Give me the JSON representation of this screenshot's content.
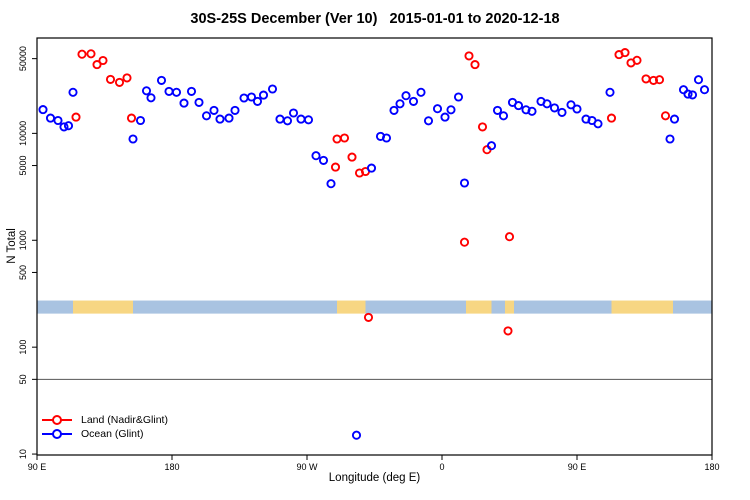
{
  "title": "30S-25S December (Ver 10)   2015-01-01 to 2020-12-18",
  "legend": {
    "items": [
      {
        "label": "Land (Nadir&Glint)",
        "series": "land"
      },
      {
        "label": "Ocean (Glint)",
        "series": "ocean"
      }
    ]
  },
  "colors": {
    "land": "#ff0000",
    "ocean": "#0000ff",
    "band_land": "#f7d683",
    "band_ocean": "#a9c3e1",
    "reference_line": "#555555",
    "axis": "#000000",
    "background": "#ffffff"
  },
  "chart_data": {
    "type": "scatter",
    "title": "30S-25S December (Ver 10)   2015-01-01 to 2020-12-18",
    "xlabel": "Longitude (deg E)",
    "ylabel": "N Total",
    "x_axis": {
      "note": "longitude in deg E, wrapping eastward from 90E around the globe to 180",
      "range": [
        90,
        540
      ],
      "ticks": [
        {
          "value": 90,
          "label": "90 E"
        },
        {
          "value": 180,
          "label": "180"
        },
        {
          "value": 270,
          "label": "90 W"
        },
        {
          "value": 360,
          "label": "0"
        },
        {
          "value": 450,
          "label": "90 E"
        },
        {
          "value": 540,
          "label": "180"
        }
      ]
    },
    "y_axis": {
      "scale": "log10",
      "range": [
        9.8,
        78000
      ],
      "ticks": [
        {
          "value": 50000,
          "label": "50000"
        },
        {
          "value": 10000,
          "label": "10000"
        },
        {
          "value": 5000,
          "label": "5000"
        },
        {
          "value": 1000,
          "label": "1000"
        },
        {
          "value": 500,
          "label": "500"
        },
        {
          "value": 100,
          "label": "100"
        },
        {
          "value": 50,
          "label": "50"
        },
        {
          "value": 10,
          "label": "10"
        }
      ]
    },
    "reference_line": {
      "y": 50
    },
    "surface_band": {
      "N_range": [
        206,
        273
      ],
      "segments": [
        {
          "surface": "ocean",
          "from": 90,
          "to": 114
        },
        {
          "surface": "land",
          "from": 114,
          "to": 154
        },
        {
          "surface": "ocean",
          "from": 154,
          "to": 290
        },
        {
          "surface": "land",
          "from": 290,
          "to": 309
        },
        {
          "surface": "ocean",
          "from": 309,
          "to": 376
        },
        {
          "surface": "land",
          "from": 376,
          "to": 393
        },
        {
          "surface": "ocean",
          "from": 393,
          "to": 402
        },
        {
          "surface": "land",
          "from": 402,
          "to": 408
        },
        {
          "surface": "ocean",
          "from": 408,
          "to": 473
        },
        {
          "surface": "land",
          "from": 473,
          "to": 514
        },
        {
          "surface": "ocean",
          "from": 514,
          "to": 540
        }
      ]
    },
    "series": [
      {
        "name": "Land (Nadir&Glint)",
        "color_key": "land",
        "marker": "open-circle",
        "points": [
          [
            120,
            55000
          ],
          [
            126,
            55500
          ],
          [
            130,
            44000
          ],
          [
            134,
            48000
          ],
          [
            139,
            32000
          ],
          [
            145,
            30000
          ],
          [
            150,
            33000
          ],
          [
            116,
            14200
          ],
          [
            153,
            13900
          ],
          [
            289,
            4840
          ],
          [
            290,
            8850
          ],
          [
            295,
            9040
          ],
          [
            300,
            6000
          ],
          [
            305,
            4260
          ],
          [
            309,
            4400
          ],
          [
            311,
            190
          ],
          [
            378,
            53000
          ],
          [
            382,
            44000
          ],
          [
            387,
            11500
          ],
          [
            390,
            7030
          ],
          [
            375,
            960
          ],
          [
            405,
            1080
          ],
          [
            404,
            142
          ],
          [
            478,
            54500
          ],
          [
            482,
            57000
          ],
          [
            486,
            45600
          ],
          [
            490,
            48200
          ],
          [
            496,
            32300
          ],
          [
            501,
            31300
          ],
          [
            505,
            31800
          ],
          [
            473,
            13900
          ],
          [
            509,
            14600
          ]
        ]
      },
      {
        "name": "Ocean (Glint)",
        "color_key": "ocean",
        "marker": "open-circle",
        "points": [
          [
            94,
            16700
          ],
          [
            99,
            13900
          ],
          [
            104,
            13200
          ],
          [
            108,
            11500
          ],
          [
            111,
            11800
          ],
          [
            114,
            24200
          ],
          [
            154,
            8850
          ],
          [
            159,
            13200
          ],
          [
            163,
            25000
          ],
          [
            166,
            21500
          ],
          [
            173,
            31300
          ],
          [
            178,
            24700
          ],
          [
            183,
            24200
          ],
          [
            188,
            19200
          ],
          [
            193,
            24700
          ],
          [
            198,
            19500
          ],
          [
            203,
            14600
          ],
          [
            208,
            16400
          ],
          [
            212,
            13600
          ],
          [
            218,
            13900
          ],
          [
            222,
            16400
          ],
          [
            228,
            21400
          ],
          [
            233,
            21900
          ],
          [
            237,
            19900
          ],
          [
            241,
            22800
          ],
          [
            247,
            26000
          ],
          [
            252,
            13600
          ],
          [
            257,
            13100
          ],
          [
            261,
            15500
          ],
          [
            266,
            13600
          ],
          [
            271,
            13400
          ],
          [
            276,
            6180
          ],
          [
            281,
            5580
          ],
          [
            286,
            3380
          ],
          [
            303,
            15
          ],
          [
            313,
            4730
          ],
          [
            319,
            9360
          ],
          [
            323,
            9040
          ],
          [
            328,
            16400
          ],
          [
            332,
            18900
          ],
          [
            336,
            22500
          ],
          [
            341,
            19900
          ],
          [
            346,
            24200
          ],
          [
            351,
            13100
          ],
          [
            357,
            17000
          ],
          [
            362,
            14200
          ],
          [
            366,
            16600
          ],
          [
            371,
            21900
          ],
          [
            375,
            3430
          ],
          [
            393,
            7660
          ],
          [
            397,
            16400
          ],
          [
            401,
            14600
          ],
          [
            407,
            19500
          ],
          [
            411,
            18200
          ],
          [
            416,
            16600
          ],
          [
            420,
            16100
          ],
          [
            426,
            19900
          ],
          [
            430,
            18900
          ],
          [
            435,
            17300
          ],
          [
            440,
            15700
          ],
          [
            446,
            18500
          ],
          [
            450,
            16900
          ],
          [
            456,
            13600
          ],
          [
            460,
            13200
          ],
          [
            464,
            12300
          ],
          [
            472,
            24200
          ],
          [
            512,
            8850
          ],
          [
            515,
            13600
          ],
          [
            521,
            25600
          ],
          [
            524,
            23300
          ],
          [
            527,
            22900
          ],
          [
            531,
            31800
          ],
          [
            535,
            25600
          ]
        ]
      }
    ]
  }
}
